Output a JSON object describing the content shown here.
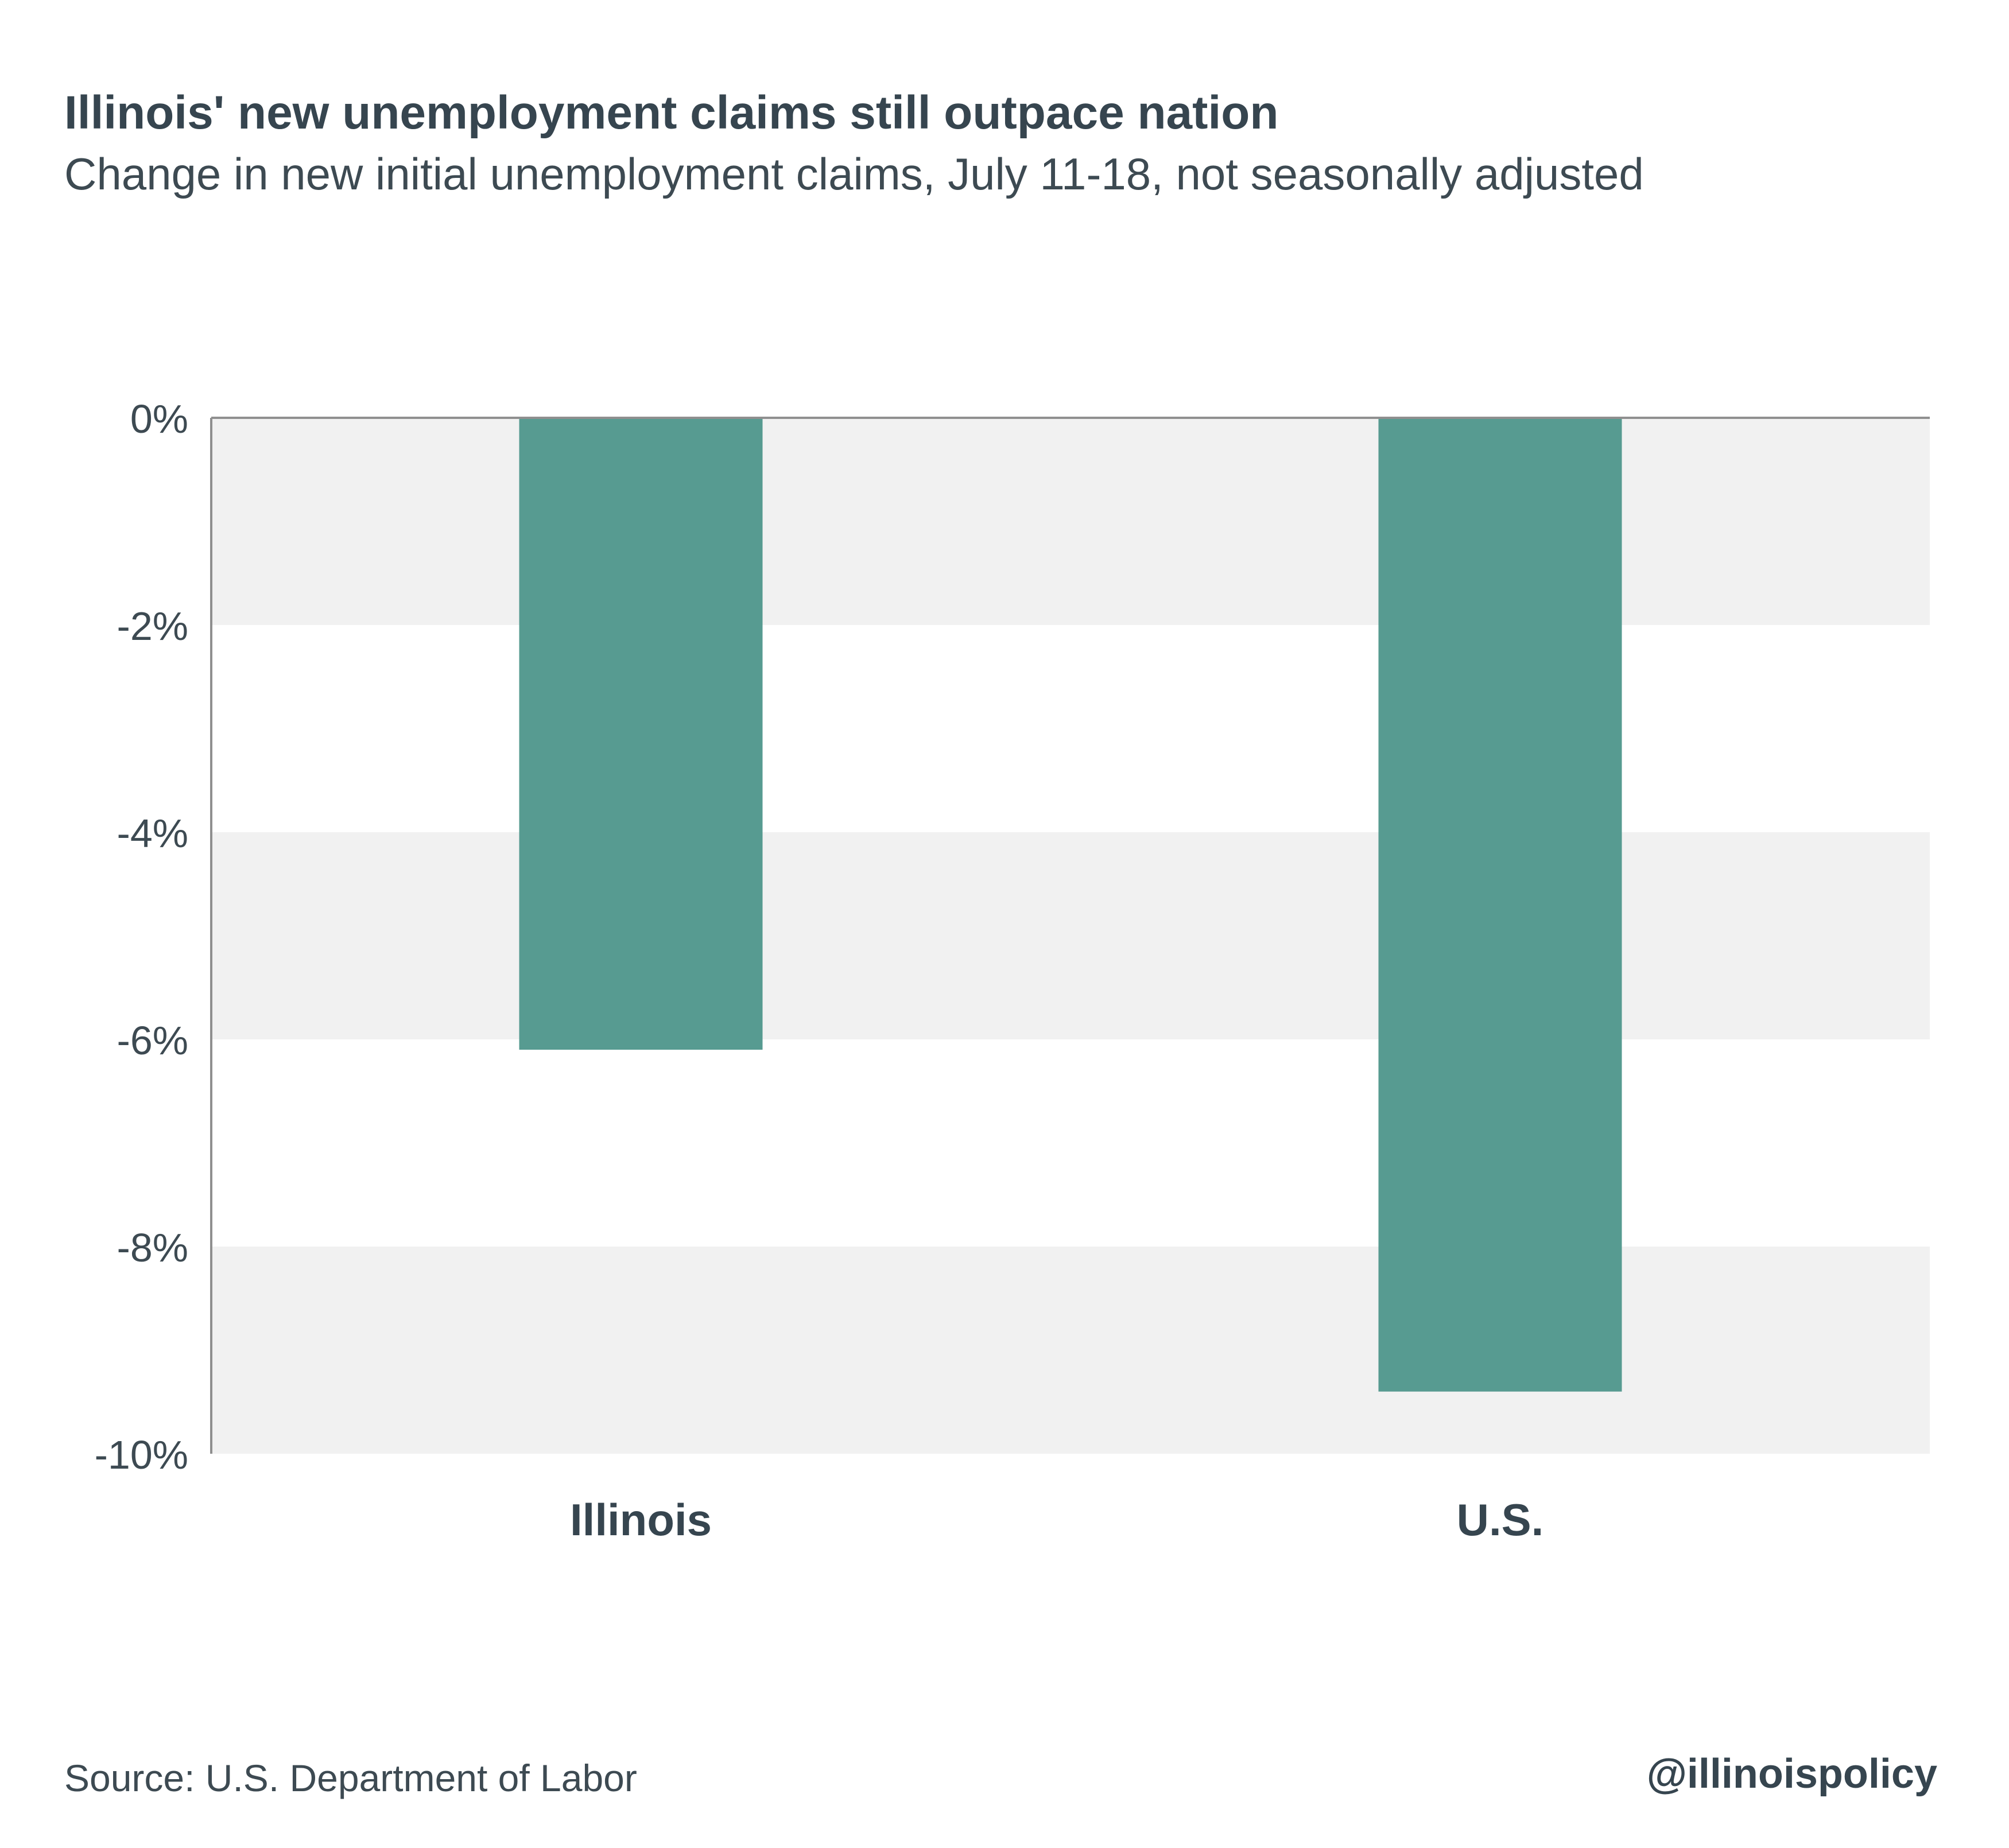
{
  "header": {
    "title": "Illinois' new unemployment claims still outpace nation",
    "subtitle": "Change in new initial unemployment claims, July 11-18, not seasonally adjusted"
  },
  "footer": {
    "source": "Source: U.S. Department of Labor",
    "handle": "@illinoispolicy"
  },
  "colors": {
    "bar": "#579b91",
    "band": "#f1f1f1",
    "axis": "#8f8f8f",
    "text": "#36454f"
  },
  "chart_data": {
    "type": "bar",
    "title": "Illinois' new unemployment claims still outpace nation",
    "subtitle": "Change in new initial unemployment claims, July 11-18, not seasonally adjusted",
    "categories": [
      "Illinois",
      "U.S."
    ],
    "values": [
      -6.1,
      -9.4
    ],
    "unit": "%",
    "ylim": [
      -10,
      0
    ],
    "yticks": [
      0,
      -2,
      -4,
      -6,
      -8,
      -10
    ],
    "ytick_labels": [
      "0%",
      "-2%",
      "-4%",
      "-6%",
      "-8%",
      "-10%"
    ],
    "grid": "alternating horizontal bands",
    "legend": "none"
  }
}
